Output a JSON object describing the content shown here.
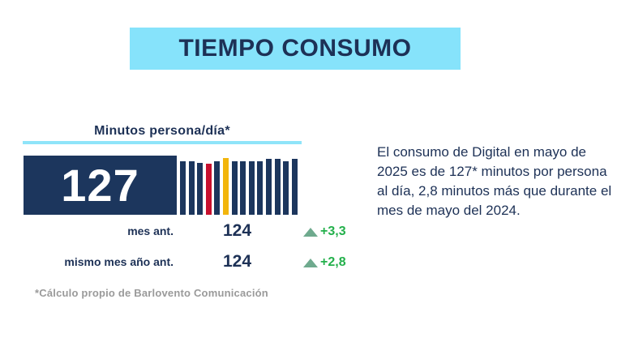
{
  "title": "TIEMPO CONSUMO",
  "metric": {
    "label": "Minutos persona/día*",
    "value": "127"
  },
  "comparisons": [
    {
      "label": "mes ant.",
      "value": "124",
      "delta": "+3,3"
    },
    {
      "label": "mismo mes año ant.",
      "value": "124",
      "delta": "+2,8"
    }
  ],
  "footnote": "*Cálculo propio de Barlovento Comunicación",
  "description": "El consumo de Digital en mayo de 2025 es de 127* minutos por persona al día, 2,8 minutos más que durante el mes de mayo del 2024.",
  "chart_data": {
    "type": "bar",
    "values": [
      0.91,
      0.91,
      0.88,
      0.86,
      0.91,
      0.96,
      0.91,
      0.91,
      0.91,
      0.91,
      0.94,
      0.94,
      0.91,
      0.94
    ],
    "colors": [
      "#1c365d",
      "#1c365d",
      "#1c365d",
      "#c8102e",
      "#1c365d",
      "#f2b50c",
      "#1c365d",
      "#1c365d",
      "#1c365d",
      "#1c365d",
      "#1c365d",
      "#1c365d",
      "#1c365d",
      "#1c365d"
    ],
    "ylim": [
      0,
      1
    ]
  },
  "colors": {
    "navy": "#1c365d",
    "cyan": "#86e3fb",
    "green": "#23b04b",
    "triangle": "#6faa8e",
    "footnote": "#9a9a9a"
  }
}
